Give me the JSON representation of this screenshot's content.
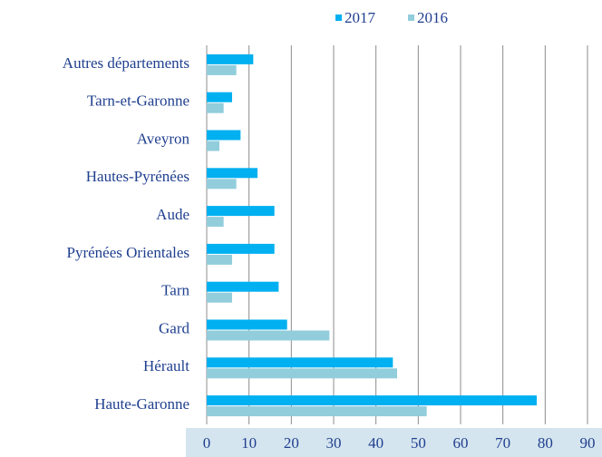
{
  "chart_data": {
    "type": "bar",
    "orientation": "horizontal",
    "categories": [
      "Autres départements",
      "Tarn-et-Garonne",
      "Aveyron",
      "Hautes-Pyrénées",
      "Aude",
      "Pyrénées Orientales",
      "Tarn",
      "Gard",
      "Hérault",
      "Haute-Garonne"
    ],
    "series": [
      {
        "name": "2017",
        "color": "#00b0f0",
        "values": [
          11,
          6,
          8,
          12,
          16,
          16,
          17,
          19,
          44,
          78
        ]
      },
      {
        "name": "2016",
        "color": "#92cddc",
        "values": [
          7,
          4,
          3,
          7,
          4,
          6,
          6,
          29,
          45,
          52
        ]
      }
    ],
    "xlim": [
      0,
      90
    ],
    "xticks": [
      0,
      10,
      20,
      30,
      40,
      50,
      60,
      70,
      80,
      90
    ],
    "grid": true,
    "legend": "top"
  }
}
